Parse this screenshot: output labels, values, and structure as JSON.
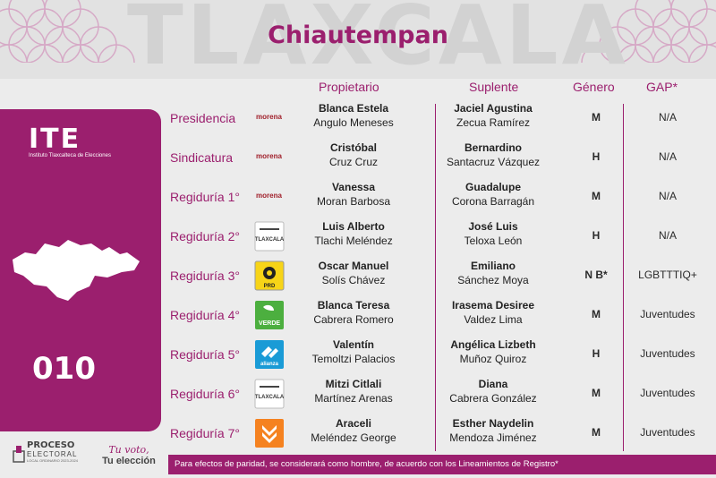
{
  "header": {
    "watermark": "TLAXCALA",
    "municipio": "Chiautempan"
  },
  "left_panel": {
    "logo_text": "ITE",
    "logo_caption": "Instituto Tlaxcalteca de Elecciones",
    "distrito": "010"
  },
  "columns": {
    "propietario": "Propietario",
    "suplente": "Suplente",
    "genero": "Género",
    "gap": "GAP*"
  },
  "rows": [
    {
      "cargo": "Presidencia",
      "party": "morena",
      "prop_nombre": "Blanca Estela",
      "prop_apellido": "Angulo Meneses",
      "sup_nombre": "Jaciel Agustina",
      "sup_apellido": "Zecua Ramírez",
      "genero": "M",
      "gap": "N/A"
    },
    {
      "cargo": "Sindicatura",
      "party": "morena",
      "prop_nombre": "Cristóbal",
      "prop_apellido": "Cruz Cruz",
      "sup_nombre": "Bernardino",
      "sup_apellido": "Santacruz Vázquez",
      "genero": "H",
      "gap": "N/A"
    },
    {
      "cargo": "Regiduría 1°",
      "party": "morena",
      "prop_nombre": "Vanessa",
      "prop_apellido": "Moran Barbosa",
      "sup_nombre": "Guadalupe",
      "sup_apellido": "Corona Barragán",
      "genero": "M",
      "gap": "N/A"
    },
    {
      "cargo": "Regiduría 2°",
      "party": "tlaxcala-logo",
      "prop_nombre": "Luis Alberto",
      "prop_apellido": "Tlachi Meléndez",
      "sup_nombre": "José Luis",
      "sup_apellido": "Teloxa León",
      "genero": "H",
      "gap": "N/A"
    },
    {
      "cargo": "Regiduría 3°",
      "party": "prd-logo",
      "prop_nombre": "Oscar Manuel",
      "prop_apellido": "Solís Chávez",
      "sup_nombre": "Emiliano",
      "sup_apellido": "Sánchez Moya",
      "genero": "N B*",
      "gap": "LGBTTTIQ+"
    },
    {
      "cargo": "Regiduría 4°",
      "party": "verde-logo",
      "prop_nombre": "Blanca Teresa",
      "prop_apellido": "Cabrera Romero",
      "sup_nombre": "Irasema Desiree",
      "sup_apellido": "Valdez Lima",
      "genero": "M",
      "gap": "Juventudes"
    },
    {
      "cargo": "Regiduría 5°",
      "party": "alianza-logo",
      "prop_nombre": "Valentín",
      "prop_apellido": "Temoltzi Palacios",
      "sup_nombre": "Angélica Lizbeth",
      "sup_apellido": "Muñoz Quiroz",
      "genero": "H",
      "gap": "Juventudes"
    },
    {
      "cargo": "Regiduría 6°",
      "party": "tlaxcala-logo",
      "prop_nombre": "Mitzi Citlali",
      "prop_apellido": "Martínez Arenas",
      "sup_nombre": "Diana",
      "sup_apellido": "Cabrera González",
      "genero": "M",
      "gap": "Juventudes"
    },
    {
      "cargo": "Regiduría 7°",
      "party": "mc-logo",
      "prop_nombre": "Araceli",
      "prop_apellido": "Meléndez George",
      "sup_nombre": "Esther Naydelin",
      "sup_apellido": "Mendoza Jiménez",
      "genero": "M",
      "gap": "Juventudes"
    }
  ],
  "party_labels": {
    "morena": "morena",
    "tlaxcala": "TLAXCALA",
    "prd": "PRD",
    "verde": "VERDE",
    "alianza": "alianza"
  },
  "footer": {
    "note": "Para efectos de paridad, se considerará como hombre, de acuerdo con los Lineamientos de Registro*",
    "proceso_1": "PROCESO",
    "proceso_2": "ELECTORAL",
    "proceso_3": "LOCAL ORDINARIO 2023-2024",
    "tuvoto_1": "Tu voto,",
    "tuvoto_2": "Tu elección"
  },
  "colors": {
    "accent": "#9b1f6e",
    "background": "#ececec"
  }
}
